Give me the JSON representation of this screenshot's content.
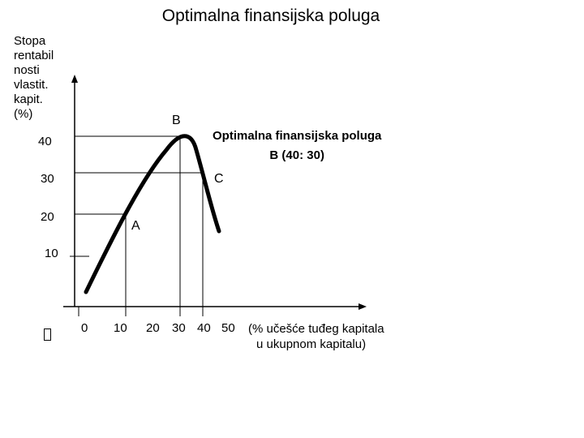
{
  "title": "Optimalna finansijska poluga",
  "y_axis_label": [
    "Stopa",
    "rentabil",
    "nosti",
    "vlastit.",
    "kapit.",
    "(%)"
  ],
  "y_ticks": [
    "40",
    "30",
    "20",
    "10"
  ],
  "x_ticks": [
    "0",
    "10",
    "20",
    "30",
    "40",
    "50"
  ],
  "x_axis_label": [
    "(% učešće tuđeg kapitala",
    "u ukupnom  kapitalu)"
  ],
  "points": {
    "a": "A",
    "b": "B",
    "c": "C"
  },
  "annotation": [
    "Optimalna finansijska poluga",
    "B (40: 30)"
  ]
}
